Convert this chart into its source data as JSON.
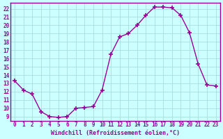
{
  "x": [
    0,
    1,
    2,
    3,
    4,
    5,
    6,
    7,
    8,
    9,
    10,
    11,
    12,
    13,
    14,
    15,
    16,
    17,
    18,
    19,
    20,
    21,
    22,
    23
  ],
  "y": [
    13.3,
    12.2,
    11.7,
    9.6,
    9.0,
    8.9,
    9.0,
    10.0,
    10.1,
    10.2,
    12.2,
    16.5,
    18.6,
    19.0,
    20.0,
    21.2,
    22.2,
    22.2,
    22.1,
    21.2,
    19.1,
    15.3,
    12.8,
    12.7
  ],
  "line_color": "#990099",
  "marker": "+",
  "marker_size": 5,
  "marker_lw": 1.2,
  "line_width": 1.0,
  "bg_color": "#ccffff",
  "grid_color": "#aadddd",
  "xlabel": "Windchill (Refroidissement éolien,°C)",
  "xlabel_color": "#990099",
  "tick_color": "#990099",
  "spine_color": "#990099",
  "ylim": [
    8.5,
    22.7
  ],
  "xlim": [
    -0.5,
    23.5
  ],
  "yticks": [
    9,
    10,
    11,
    12,
    13,
    14,
    15,
    16,
    17,
    18,
    19,
    20,
    21,
    22
  ],
  "xticks": [
    0,
    1,
    2,
    3,
    4,
    5,
    6,
    7,
    8,
    9,
    10,
    11,
    12,
    13,
    14,
    15,
    16,
    17,
    18,
    19,
    20,
    21,
    22,
    23
  ],
  "tick_fontsize": 5.5,
  "xlabel_fontsize": 6.0
}
